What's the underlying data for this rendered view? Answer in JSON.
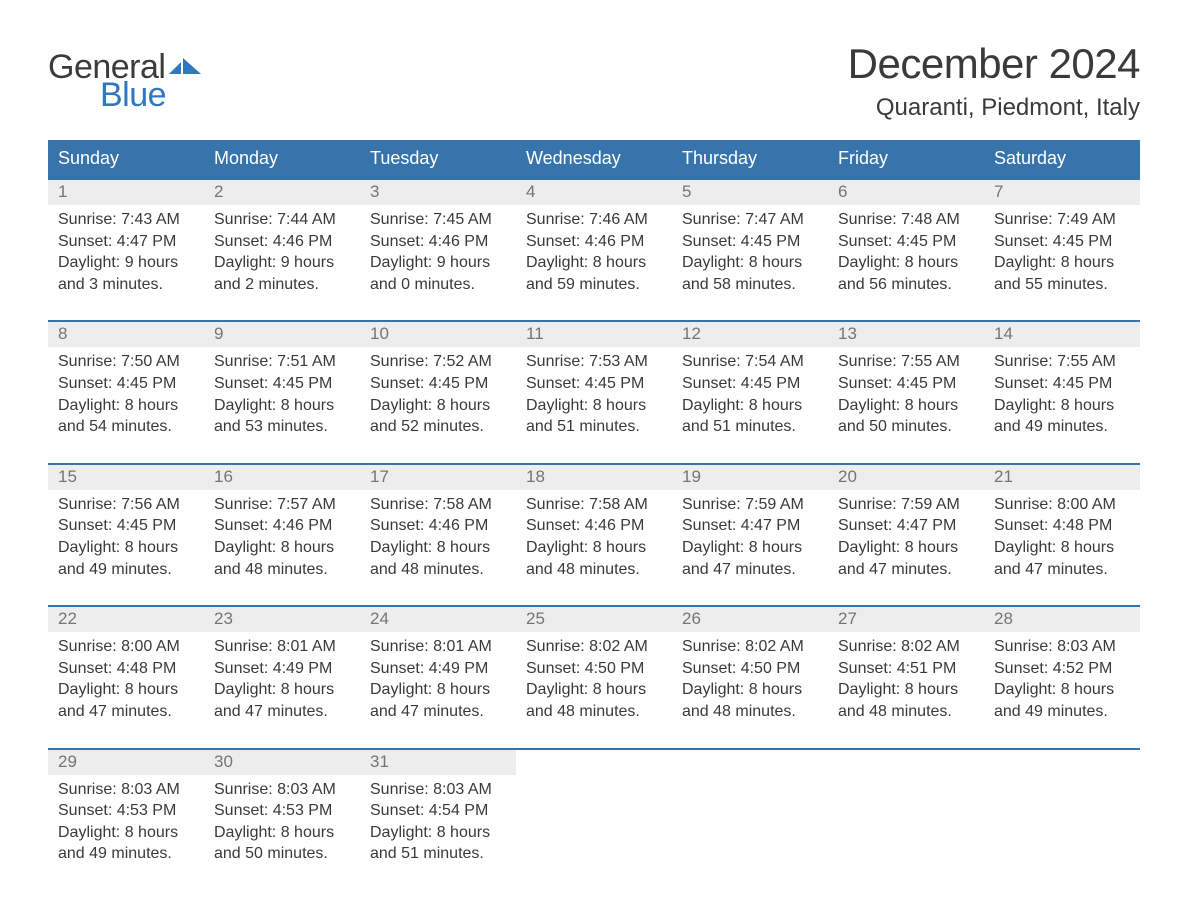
{
  "brand": {
    "part1": "General",
    "part2": "Blue",
    "text_color": "#3b3b3b",
    "accent_color": "#2f78bf"
  },
  "title": "December 2024",
  "location": "Quaranti, Piedmont, Italy",
  "colors": {
    "header_bg": "#3874ac",
    "header_text": "#ffffff",
    "row_divider": "#3874ac",
    "daynum_bg": "#ededed",
    "daynum_text": "#757575",
    "body_text": "#3a3a3a",
    "page_bg": "#ffffff"
  },
  "typography": {
    "title_fontsize": 42,
    "location_fontsize": 24,
    "header_fontsize": 18,
    "daynum_fontsize": 17,
    "body_fontsize": 16,
    "logo_fontsize": 34
  },
  "day_headers": [
    "Sunday",
    "Monday",
    "Tuesday",
    "Wednesday",
    "Thursday",
    "Friday",
    "Saturday"
  ],
  "weeks": [
    [
      {
        "num": "1",
        "sunrise": "7:43 AM",
        "sunset": "4:47 PM",
        "daylight_h": "9",
        "daylight_m": "3"
      },
      {
        "num": "2",
        "sunrise": "7:44 AM",
        "sunset": "4:46 PM",
        "daylight_h": "9",
        "daylight_m": "2"
      },
      {
        "num": "3",
        "sunrise": "7:45 AM",
        "sunset": "4:46 PM",
        "daylight_h": "9",
        "daylight_m": "0"
      },
      {
        "num": "4",
        "sunrise": "7:46 AM",
        "sunset": "4:46 PM",
        "daylight_h": "8",
        "daylight_m": "59"
      },
      {
        "num": "5",
        "sunrise": "7:47 AM",
        "sunset": "4:45 PM",
        "daylight_h": "8",
        "daylight_m": "58"
      },
      {
        "num": "6",
        "sunrise": "7:48 AM",
        "sunset": "4:45 PM",
        "daylight_h": "8",
        "daylight_m": "56"
      },
      {
        "num": "7",
        "sunrise": "7:49 AM",
        "sunset": "4:45 PM",
        "daylight_h": "8",
        "daylight_m": "55"
      }
    ],
    [
      {
        "num": "8",
        "sunrise": "7:50 AM",
        "sunset": "4:45 PM",
        "daylight_h": "8",
        "daylight_m": "54"
      },
      {
        "num": "9",
        "sunrise": "7:51 AM",
        "sunset": "4:45 PM",
        "daylight_h": "8",
        "daylight_m": "53"
      },
      {
        "num": "10",
        "sunrise": "7:52 AM",
        "sunset": "4:45 PM",
        "daylight_h": "8",
        "daylight_m": "52"
      },
      {
        "num": "11",
        "sunrise": "7:53 AM",
        "sunset": "4:45 PM",
        "daylight_h": "8",
        "daylight_m": "51"
      },
      {
        "num": "12",
        "sunrise": "7:54 AM",
        "sunset": "4:45 PM",
        "daylight_h": "8",
        "daylight_m": "51"
      },
      {
        "num": "13",
        "sunrise": "7:55 AM",
        "sunset": "4:45 PM",
        "daylight_h": "8",
        "daylight_m": "50"
      },
      {
        "num": "14",
        "sunrise": "7:55 AM",
        "sunset": "4:45 PM",
        "daylight_h": "8",
        "daylight_m": "49"
      }
    ],
    [
      {
        "num": "15",
        "sunrise": "7:56 AM",
        "sunset": "4:45 PM",
        "daylight_h": "8",
        "daylight_m": "49"
      },
      {
        "num": "16",
        "sunrise": "7:57 AM",
        "sunset": "4:46 PM",
        "daylight_h": "8",
        "daylight_m": "48"
      },
      {
        "num": "17",
        "sunrise": "7:58 AM",
        "sunset": "4:46 PM",
        "daylight_h": "8",
        "daylight_m": "48"
      },
      {
        "num": "18",
        "sunrise": "7:58 AM",
        "sunset": "4:46 PM",
        "daylight_h": "8",
        "daylight_m": "48"
      },
      {
        "num": "19",
        "sunrise": "7:59 AM",
        "sunset": "4:47 PM",
        "daylight_h": "8",
        "daylight_m": "47"
      },
      {
        "num": "20",
        "sunrise": "7:59 AM",
        "sunset": "4:47 PM",
        "daylight_h": "8",
        "daylight_m": "47"
      },
      {
        "num": "21",
        "sunrise": "8:00 AM",
        "sunset": "4:48 PM",
        "daylight_h": "8",
        "daylight_m": "47"
      }
    ],
    [
      {
        "num": "22",
        "sunrise": "8:00 AM",
        "sunset": "4:48 PM",
        "daylight_h": "8",
        "daylight_m": "47"
      },
      {
        "num": "23",
        "sunrise": "8:01 AM",
        "sunset": "4:49 PM",
        "daylight_h": "8",
        "daylight_m": "47"
      },
      {
        "num": "24",
        "sunrise": "8:01 AM",
        "sunset": "4:49 PM",
        "daylight_h": "8",
        "daylight_m": "47"
      },
      {
        "num": "25",
        "sunrise": "8:02 AM",
        "sunset": "4:50 PM",
        "daylight_h": "8",
        "daylight_m": "48"
      },
      {
        "num": "26",
        "sunrise": "8:02 AM",
        "sunset": "4:50 PM",
        "daylight_h": "8",
        "daylight_m": "48"
      },
      {
        "num": "27",
        "sunrise": "8:02 AM",
        "sunset": "4:51 PM",
        "daylight_h": "8",
        "daylight_m": "48"
      },
      {
        "num": "28",
        "sunrise": "8:03 AM",
        "sunset": "4:52 PM",
        "daylight_h": "8",
        "daylight_m": "49"
      }
    ],
    [
      {
        "num": "29",
        "sunrise": "8:03 AM",
        "sunset": "4:53 PM",
        "daylight_h": "8",
        "daylight_m": "49"
      },
      {
        "num": "30",
        "sunrise": "8:03 AM",
        "sunset": "4:53 PM",
        "daylight_h": "8",
        "daylight_m": "50"
      },
      {
        "num": "31",
        "sunrise": "8:03 AM",
        "sunset": "4:54 PM",
        "daylight_h": "8",
        "daylight_m": "51"
      },
      null,
      null,
      null,
      null
    ]
  ],
  "labels": {
    "sunrise_prefix": "Sunrise: ",
    "sunset_prefix": "Sunset: ",
    "daylight_prefix": "Daylight: ",
    "hours_word": " hours",
    "and_word": "and ",
    "minutes_word": " minutes."
  }
}
